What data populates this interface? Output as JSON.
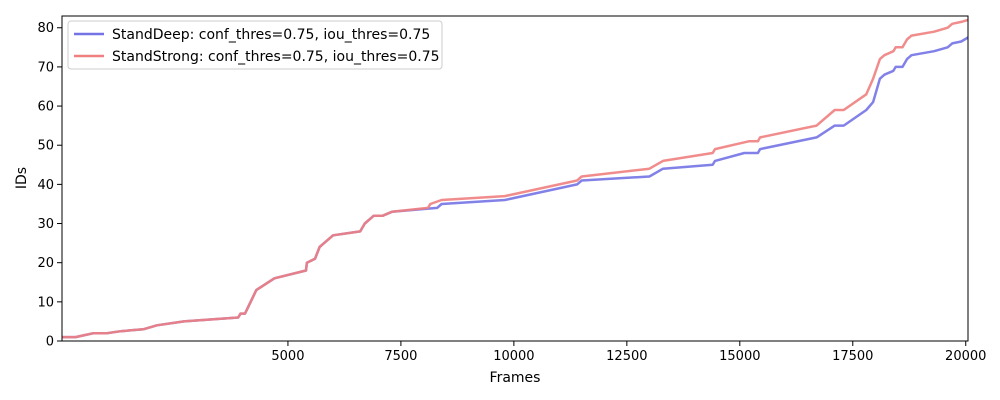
{
  "chart_data": {
    "type": "line",
    "title": "",
    "xlabel": "Frames",
    "ylabel": "IDs",
    "xlim": [
      0,
      20050
    ],
    "ylim": [
      0,
      83
    ],
    "x_ticks": [
      5000,
      7500,
      10000,
      12500,
      15000,
      17500,
      20000
    ],
    "y_ticks": [
      0,
      10,
      20,
      30,
      40,
      50,
      60,
      70,
      80
    ],
    "grid": false,
    "legend_position": "top-left",
    "series": [
      {
        "name": "StandDeep: conf_thres=0.75, iou_thres=0.75",
        "color": "#7373e6",
        "points": [
          [
            0,
            1
          ],
          [
            300,
            1
          ],
          [
            500,
            1.5
          ],
          [
            700,
            2
          ],
          [
            1000,
            2
          ],
          [
            1300,
            2.5
          ],
          [
            1800,
            3
          ],
          [
            2100,
            4
          ],
          [
            2700,
            5
          ],
          [
            3900,
            6
          ],
          [
            3950,
            7
          ],
          [
            4050,
            7
          ],
          [
            4300,
            13
          ],
          [
            4700,
            16
          ],
          [
            5400,
            18
          ],
          [
            5420,
            20
          ],
          [
            5600,
            21
          ],
          [
            5700,
            24
          ],
          [
            5800,
            25
          ],
          [
            6000,
            27
          ],
          [
            6600,
            28
          ],
          [
            6700,
            30
          ],
          [
            6900,
            32
          ],
          [
            7100,
            32
          ],
          [
            7300,
            33
          ],
          [
            8300,
            34
          ],
          [
            8400,
            35
          ],
          [
            9800,
            36
          ],
          [
            11400,
            40
          ],
          [
            11500,
            41
          ],
          [
            13000,
            42
          ],
          [
            13300,
            44
          ],
          [
            14400,
            45
          ],
          [
            14450,
            46
          ],
          [
            15100,
            48
          ],
          [
            15400,
            48
          ],
          [
            15450,
            49
          ],
          [
            16700,
            52
          ],
          [
            17100,
            55
          ],
          [
            17300,
            55
          ],
          [
            17800,
            59
          ],
          [
            17950,
            61
          ],
          [
            18100,
            67
          ],
          [
            18200,
            68
          ],
          [
            18400,
            69
          ],
          [
            18450,
            70
          ],
          [
            18600,
            70
          ],
          [
            18700,
            72
          ],
          [
            18800,
            73
          ],
          [
            19300,
            74
          ],
          [
            19600,
            75
          ],
          [
            19700,
            76
          ],
          [
            19900,
            76.5
          ],
          [
            20050,
            77.5
          ]
        ]
      },
      {
        "name": "StandStrong: conf_thres=0.75, iou_thres=0.75",
        "color": "#f08080",
        "points": [
          [
            0,
            1
          ],
          [
            300,
            1
          ],
          [
            500,
            1.5
          ],
          [
            700,
            2
          ],
          [
            1000,
            2
          ],
          [
            1300,
            2.5
          ],
          [
            1800,
            3
          ],
          [
            2100,
            4
          ],
          [
            2700,
            5
          ],
          [
            3900,
            6
          ],
          [
            3950,
            7
          ],
          [
            4050,
            7
          ],
          [
            4300,
            13
          ],
          [
            4700,
            16
          ],
          [
            5400,
            18
          ],
          [
            5420,
            20
          ],
          [
            5600,
            21
          ],
          [
            5700,
            24
          ],
          [
            5800,
            25
          ],
          [
            6000,
            27
          ],
          [
            6600,
            28
          ],
          [
            6700,
            30
          ],
          [
            6900,
            32
          ],
          [
            7100,
            32
          ],
          [
            7300,
            33
          ],
          [
            8100,
            34
          ],
          [
            8150,
            35
          ],
          [
            8400,
            36
          ],
          [
            9800,
            37
          ],
          [
            11400,
            41
          ],
          [
            11500,
            42
          ],
          [
            13000,
            44
          ],
          [
            13300,
            46
          ],
          [
            14400,
            48
          ],
          [
            14450,
            49
          ],
          [
            15200,
            51
          ],
          [
            15400,
            51
          ],
          [
            15450,
            52
          ],
          [
            16700,
            55
          ],
          [
            17100,
            59
          ],
          [
            17300,
            59
          ],
          [
            17800,
            63
          ],
          [
            17950,
            67
          ],
          [
            18100,
            72
          ],
          [
            18200,
            73
          ],
          [
            18400,
            74
          ],
          [
            18450,
            75
          ],
          [
            18600,
            75
          ],
          [
            18700,
            77
          ],
          [
            18800,
            78
          ],
          [
            19300,
            79
          ],
          [
            19600,
            80
          ],
          [
            19700,
            81
          ],
          [
            19900,
            81.5
          ],
          [
            20050,
            82
          ]
        ]
      }
    ]
  }
}
